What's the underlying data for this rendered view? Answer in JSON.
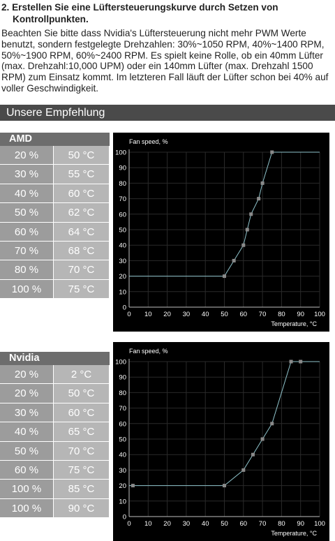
{
  "intro": {
    "title_line1": "2. Erstellen Sie eine Lüftersteuerungskurve durch Setzen von",
    "title_line2": "Kontrollpunkten.",
    "text": "Beachten Sie bitte dass Nvidia's Lüftersteuerung nicht mehr PWM Werte benutzt, sondern festgelegte Drehzahlen: 30%~1050 RPM, 40%~1400 RPM, 50%~1900 RPM, 60%~2400 RPM. Es spielt keine Rolle, ob ein 40mm Lüfter (max. Drehzahl:10,000 UPM) oder ein 140mm Lüfter (max. Drehzahl 1500 RPM) zum Einsatz kommt. Im letzteren Fall läuft der Lüfter schon bei 40% auf voller Geschwindigkeit."
  },
  "section": {
    "title": "Unsere Empfehlung"
  },
  "tables": [
    {
      "name": "AMD",
      "rows": [
        {
          "speed": "20 %",
          "temp": "50 °C"
        },
        {
          "speed": "30 %",
          "temp": "55 °C"
        },
        {
          "speed": "40 %",
          "temp": "60 °C"
        },
        {
          "speed": "50 %",
          "temp": "62 °C"
        },
        {
          "speed": "60 %",
          "temp": "64 °C"
        },
        {
          "speed": "70 %",
          "temp": "68 °C"
        },
        {
          "speed": "80 %",
          "temp": "70 °C"
        },
        {
          "speed": "100 %",
          "temp": "75 °C"
        }
      ]
    },
    {
      "name": "Nvidia",
      "rows": [
        {
          "speed": "20 %",
          "temp": "2 °C"
        },
        {
          "speed": "20 %",
          "temp": "50 °C"
        },
        {
          "speed": "30 %",
          "temp": "60 °C"
        },
        {
          "speed": "40 %",
          "temp": "65 °C"
        },
        {
          "speed": "50 %",
          "temp": "70 °C"
        },
        {
          "speed": "60 %",
          "temp": "75 °C"
        },
        {
          "speed": "100 %",
          "temp": "85 °C"
        },
        {
          "speed": "100 %",
          "temp": "90 °C"
        }
      ]
    }
  ],
  "chart_data": [
    {
      "type": "line",
      "ylabel": "Fan speed, %",
      "xlabel": "Temperature, °C",
      "xlim": [
        0,
        100
      ],
      "ylim": [
        0,
        100
      ],
      "xticks": [
        0,
        10,
        20,
        30,
        40,
        50,
        60,
        70,
        80,
        90,
        100
      ],
      "yticks": [
        0,
        10,
        20,
        30,
        40,
        50,
        60,
        70,
        80,
        90,
        100
      ],
      "line_color": "#8fc4cc",
      "marker_color": "#8a8a8a",
      "background": "#000000",
      "grid": true,
      "points": [
        [
          0,
          20
        ],
        [
          50,
          20
        ],
        [
          55,
          30
        ],
        [
          60,
          40
        ],
        [
          62,
          50
        ],
        [
          64,
          60
        ],
        [
          68,
          70
        ],
        [
          70,
          80
        ],
        [
          75,
          100
        ],
        [
          100,
          100
        ]
      ],
      "markers": [
        [
          50,
          20
        ],
        [
          55,
          30
        ],
        [
          60,
          40
        ],
        [
          62,
          50
        ],
        [
          64,
          60
        ],
        [
          68,
          70
        ],
        [
          70,
          80
        ],
        [
          75,
          100
        ]
      ]
    },
    {
      "type": "line",
      "ylabel": "Fan speed, %",
      "xlabel": "Temperature, °C",
      "xlim": [
        0,
        100
      ],
      "ylim": [
        0,
        100
      ],
      "xticks": [
        0,
        10,
        20,
        30,
        40,
        50,
        60,
        70,
        80,
        90,
        100
      ],
      "yticks": [
        0,
        10,
        20,
        30,
        40,
        50,
        60,
        70,
        80,
        90,
        100
      ],
      "line_color": "#8fc4cc",
      "marker_color": "#8a8a8a",
      "background": "#000000",
      "grid": true,
      "points": [
        [
          0,
          20
        ],
        [
          2,
          20
        ],
        [
          50,
          20
        ],
        [
          60,
          30
        ],
        [
          65,
          40
        ],
        [
          70,
          50
        ],
        [
          75,
          60
        ],
        [
          85,
          100
        ],
        [
          90,
          100
        ],
        [
          100,
          100
        ]
      ],
      "markers": [
        [
          2,
          20
        ],
        [
          50,
          20
        ],
        [
          60,
          30
        ],
        [
          65,
          40
        ],
        [
          70,
          50
        ],
        [
          75,
          60
        ],
        [
          85,
          100
        ],
        [
          90,
          100
        ]
      ]
    }
  ]
}
